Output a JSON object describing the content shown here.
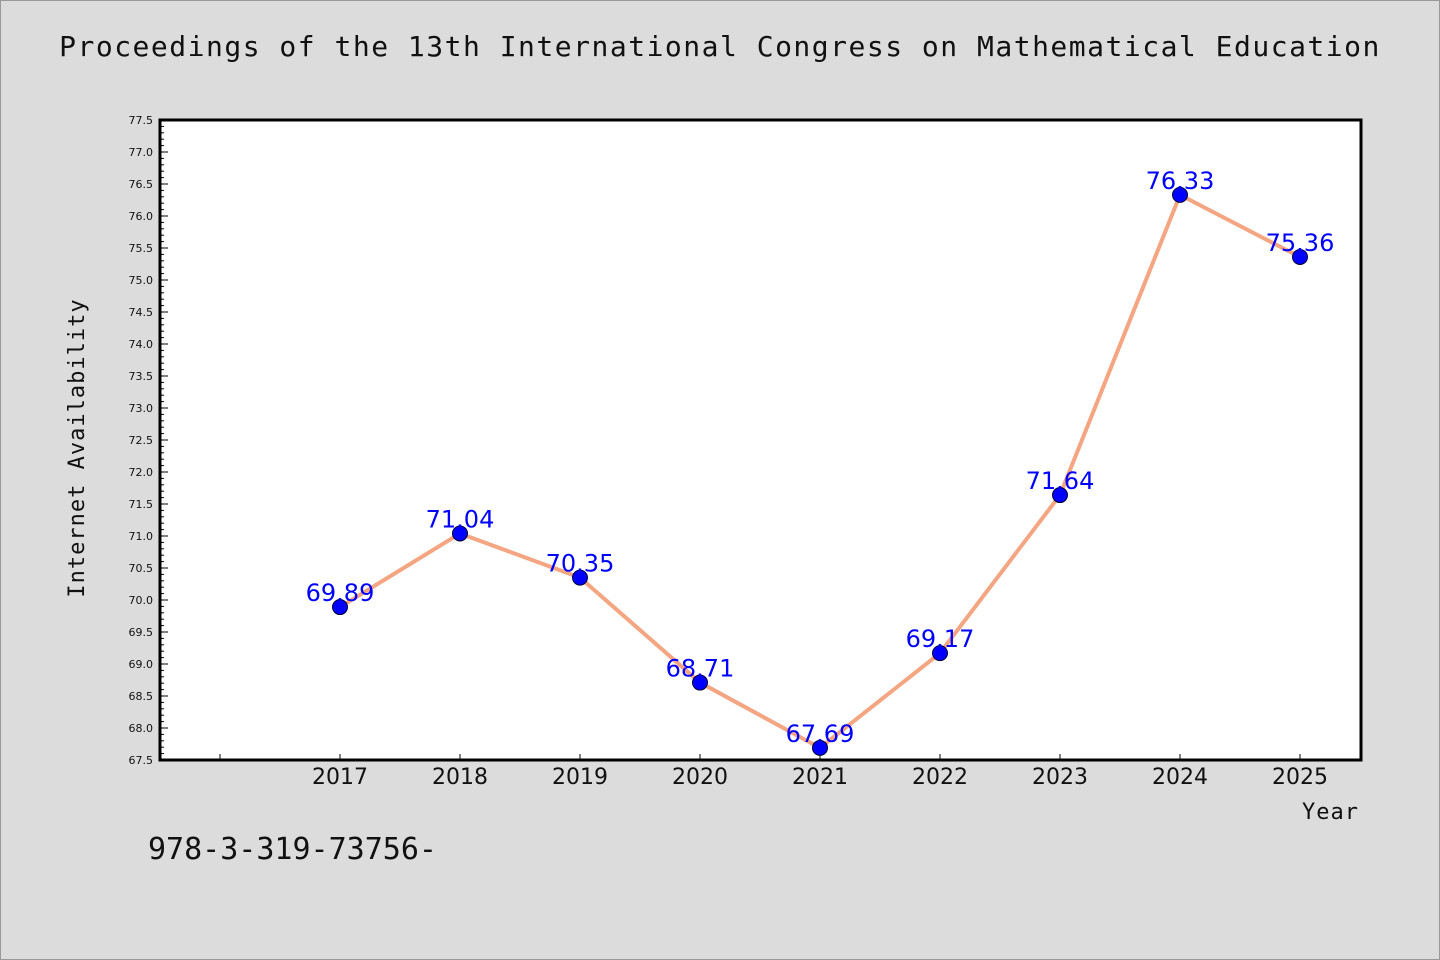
{
  "title": "Proceedings of the 13th International Congress on Mathematical Education",
  "caption": "978-3-319-73756-",
  "colors": {
    "background": "#dcdcdc",
    "plot_background": "#ffffff",
    "line": "#f4a582",
    "marker": "#0000ff",
    "label": "#0000ff"
  },
  "chart_data": {
    "type": "line",
    "xlabel": "Year",
    "ylabel": "Internet Availability",
    "ylim": [
      67.5,
      77.5
    ],
    "y_tick_step": 0.5,
    "x": [
      "2017",
      "2018",
      "2019",
      "2020",
      "2021",
      "2022",
      "2023",
      "2024",
      "2025"
    ],
    "series": [
      {
        "values": [
          69.89,
          71.04,
          70.35,
          68.71,
          67.69,
          69.17,
          71.64,
          76.33,
          75.36
        ],
        "labels": [
          "69.89",
          "71.04",
          "70.35",
          "68.71",
          "67.69",
          "69.17",
          "71.64",
          "76.33",
          "75.36"
        ]
      }
    ],
    "grid": false,
    "legend": "none"
  }
}
